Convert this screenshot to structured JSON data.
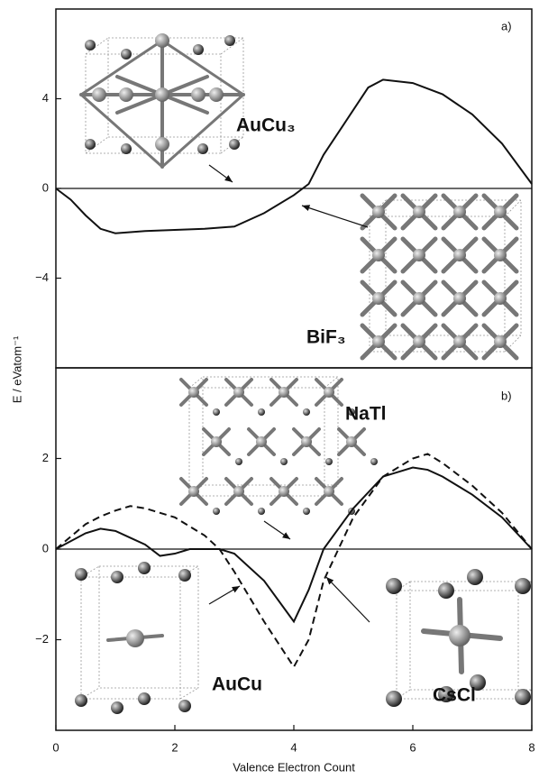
{
  "chart_data": [
    {
      "type": "line",
      "ylabel": "E / eVatom⁻¹",
      "annotations": [
        "a)",
        "AuCu₃",
        "BiF₃"
      ],
      "x": [
        0,
        0.25,
        0.5,
        0.75,
        1,
        1.5,
        2,
        2.5,
        3,
        3.5,
        4,
        4.25,
        4.5,
        5,
        5.25,
        5.5,
        6,
        6.5,
        7,
        7.5,
        8
      ],
      "series": [
        {
          "color": "#111111",
          "linestyle": "solid",
          "values": [
            0,
            -0.5,
            -1.2,
            -1.8,
            -2.0,
            -1.9,
            -1.85,
            -1.8,
            -1.7,
            -1.1,
            -0.3,
            0.2,
            1.5,
            3.5,
            4.5,
            4.85,
            4.7,
            4.2,
            3.3,
            2.0,
            0.2
          ]
        }
      ],
      "xlim": [
        0,
        8
      ],
      "ylim": [
        -8,
        8
      ],
      "yticks": [
        {
          "value": -4,
          "label": "−4"
        },
        0,
        4
      ]
    },
    {
      "type": "line",
      "xlabel": "Valence Electron Count",
      "annotations": [
        "b)",
        "NaTl",
        "AuCu",
        "CsCl"
      ],
      "x": [
        0,
        0.5,
        0.75,
        1,
        1.25,
        1.5,
        1.75,
        2,
        2.25,
        2.5,
        2.75,
        3,
        3.5,
        4,
        4.25,
        4.5,
        5,
        5.5,
        6,
        6.25,
        6.5,
        7,
        7.5,
        8
      ],
      "series": [
        {
          "color": "#111111",
          "linestyle": "solid",
          "values": [
            0,
            0.35,
            0.45,
            0.4,
            0.25,
            0.1,
            -0.15,
            -0.1,
            0.0,
            0.0,
            0.0,
            -0.1,
            -0.7,
            -1.6,
            -0.9,
            0.0,
            0.9,
            1.6,
            1.8,
            1.75,
            1.6,
            1.2,
            0.7,
            0
          ]
        },
        {
          "color": "#111111",
          "linestyle": "dashed",
          "values": [
            0,
            0.55,
            0.72,
            0.85,
            0.95,
            0.9,
            0.8,
            0.7,
            0.5,
            0.3,
            0.0,
            -0.5,
            -1.6,
            -2.6,
            -2.0,
            -0.7,
            0.7,
            1.6,
            2.0,
            2.1,
            1.9,
            1.4,
            0.8,
            0
          ]
        }
      ],
      "xlim": [
        0,
        8
      ],
      "ylim": [
        -4,
        4
      ],
      "xticks": [
        0,
        2,
        4,
        6,
        8
      ],
      "yticks": [
        {
          "value": -2,
          "label": "−2"
        },
        0,
        2
      ]
    }
  ]
}
